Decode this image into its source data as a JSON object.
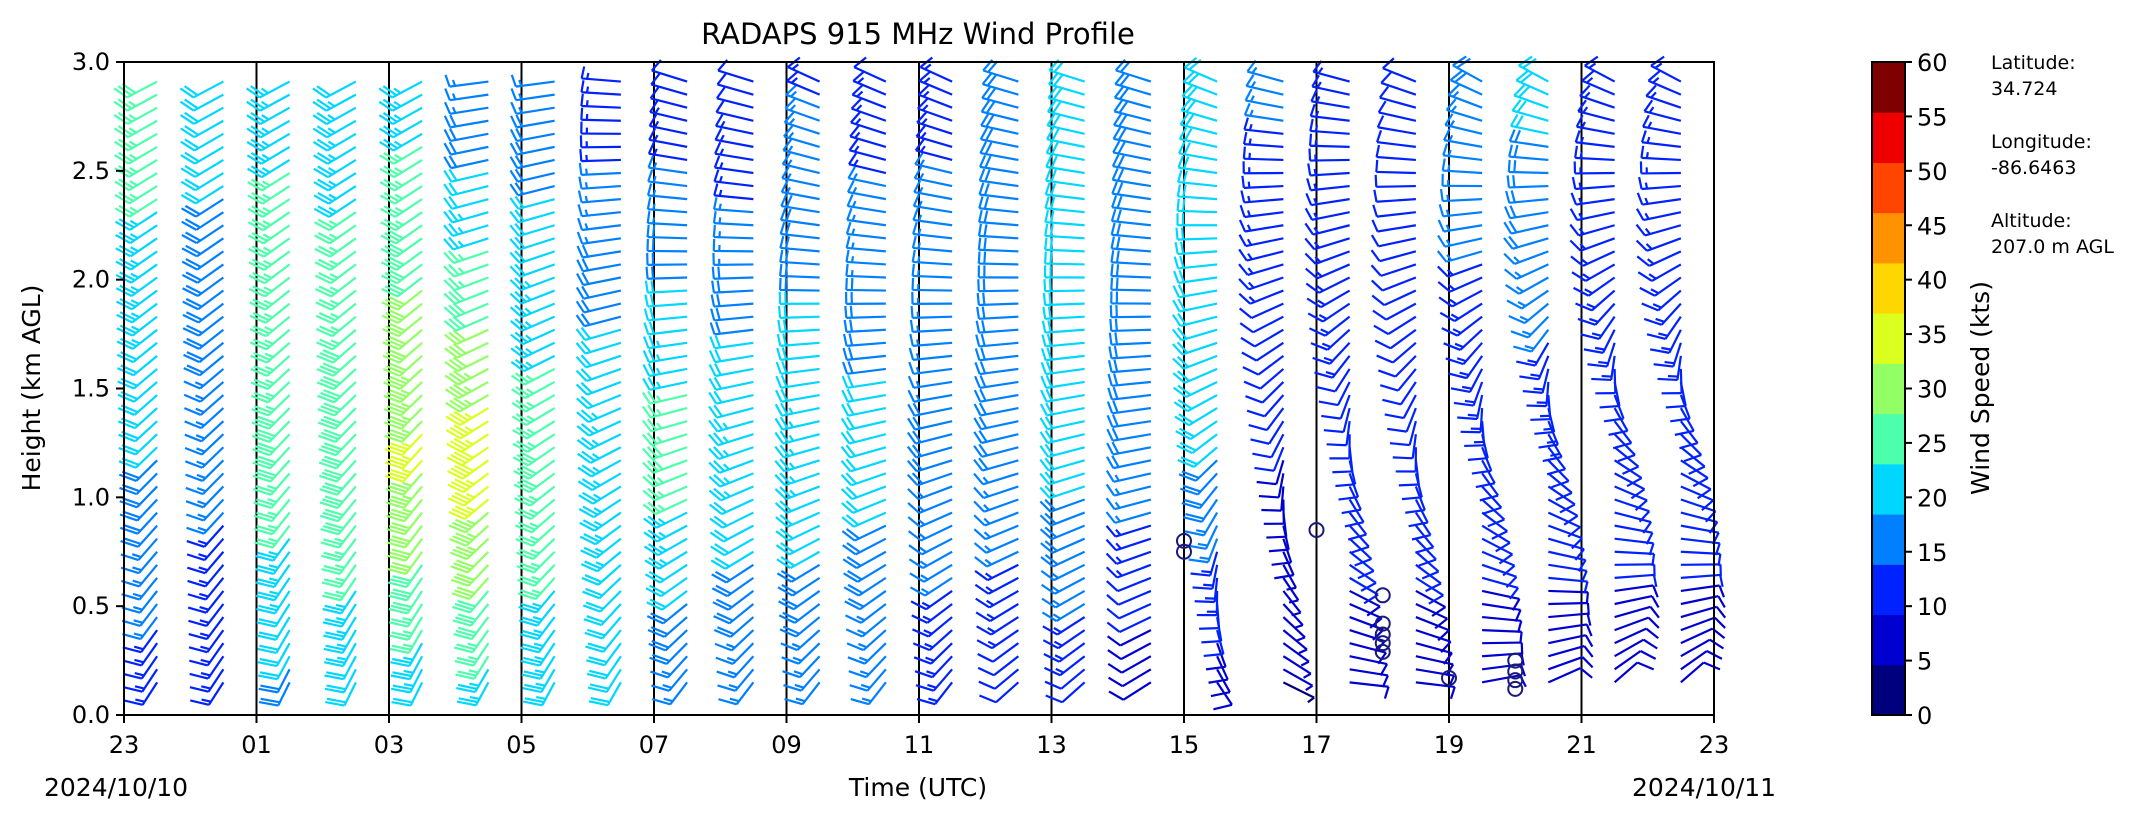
{
  "chart_data": {
    "type": "wind-barb",
    "title": "RADAPS 915 MHz Wind Profile",
    "xlabel": "Time (UTC)",
    "ylabel": "Height (km AGL)",
    "ylim": [
      0,
      3.0
    ],
    "xlim": [
      0,
      24
    ],
    "y_ticks": [
      "0.0",
      "0.5",
      "1.0",
      "1.5",
      "2.0",
      "2.5",
      "3.0"
    ],
    "x_ticks": [
      "23",
      "01",
      "03",
      "05",
      "07",
      "09",
      "11",
      "13",
      "15",
      "17",
      "19",
      "21",
      "23"
    ],
    "start_date": "2024/10/10",
    "end_date": "2024/10/11",
    "vertical_separators": true,
    "colorbar": {
      "label": "Wind Speed (kts)",
      "ticks": [
        "0",
        "5",
        "10",
        "15",
        "20",
        "25",
        "30",
        "35",
        "40",
        "45",
        "50",
        "55",
        "60"
      ],
      "colors": [
        "#00007f",
        "#0000d0",
        "#0022ff",
        "#0080ff",
        "#00d7ff",
        "#4cffaa",
        "#92ff64",
        "#dbff1e",
        "#ffd700",
        "#ff9200",
        "#ff4500",
        "#ee0000",
        "#7f0000"
      ]
    },
    "site": {
      "lat_label": "Latitude:",
      "lat": "34.724",
      "lon_label": "Longitude:",
      "lon": "-86.6463",
      "alt_label": "Altitude:",
      "alt": "207.0 m AGL"
    },
    "profile_times_hours": [
      0,
      1,
      2,
      3,
      4,
      5,
      6,
      7,
      8,
      9,
      10,
      11,
      12,
      13,
      14,
      15,
      16,
      17,
      18,
      19,
      20,
      21,
      22,
      23
    ],
    "profiles_by_hour": [
      {
        "t": 0,
        "speed_low": 12,
        "speed_mid": 20,
        "speed_high": 28,
        "dir_low": 200,
        "dir_high": 230
      },
      {
        "t": 1,
        "speed_low": 12,
        "speed_mid": 16,
        "speed_high": 22,
        "dir_low": 200,
        "dir_high": 230
      },
      {
        "t": 2,
        "speed_low": 18,
        "speed_mid": 28,
        "speed_high": 24,
        "dir_low": 195,
        "dir_high": 230
      },
      {
        "t": 3,
        "speed_low": 20,
        "speed_mid": 30,
        "speed_high": 22,
        "dir_low": 195,
        "dir_high": 230
      },
      {
        "t": 4,
        "speed_low": 20,
        "speed_mid": 36,
        "speed_high": 22,
        "dir_low": 195,
        "dir_high": 230
      },
      {
        "t": 5,
        "speed_low": 22,
        "speed_mid": 38,
        "speed_high": 14,
        "dir_low": 195,
        "dir_high": 260
      },
      {
        "t": 6,
        "speed_low": 22,
        "speed_mid": 28,
        "speed_high": 16,
        "dir_low": 195,
        "dir_high": 260
      },
      {
        "t": 7,
        "speed_low": 20,
        "speed_mid": 24,
        "speed_high": 12,
        "dir_low": 195,
        "dir_high": 280
      },
      {
        "t": 8,
        "speed_low": 14,
        "speed_mid": 28,
        "speed_high": 10,
        "dir_low": 200,
        "dir_high": 300
      },
      {
        "t": 9,
        "speed_low": 14,
        "speed_mid": 24,
        "speed_high": 10,
        "dir_low": 200,
        "dir_high": 300
      },
      {
        "t": 10,
        "speed_low": 14,
        "speed_mid": 24,
        "speed_high": 14,
        "dir_low": 200,
        "dir_high": 310
      },
      {
        "t": 11,
        "speed_low": 14,
        "speed_mid": 22,
        "speed_high": 12,
        "dir_low": 200,
        "dir_high": 310
      },
      {
        "t": 12,
        "speed_low": 12,
        "speed_mid": 18,
        "speed_high": 14,
        "dir_low": 200,
        "dir_high": 310
      },
      {
        "t": 13,
        "speed_low": 10,
        "speed_mid": 18,
        "speed_high": 18,
        "dir_low": 210,
        "dir_high": 300
      },
      {
        "t": 14,
        "speed_low": 10,
        "speed_mid": 22,
        "speed_high": 22,
        "dir_low": 210,
        "dir_high": 300
      },
      {
        "t": 15,
        "speed_low": 6,
        "speed_mid": 18,
        "speed_high": 18,
        "dir_low": 220,
        "dir_high": 300
      },
      {
        "t": 16,
        "speed_low": 6,
        "speed_mid": 20,
        "speed_high": 20,
        "dir_low": 150,
        "dir_high": 310
      },
      {
        "t": 17,
        "speed_low": 4,
        "speed_mid": 10,
        "speed_high": 16,
        "dir_low": 120,
        "dir_high": 300
      },
      {
        "t": 18,
        "speed_low": 8,
        "speed_mid": 12,
        "speed_high": 14,
        "dir_low": 90,
        "dir_high": 300
      },
      {
        "t": 19,
        "speed_low": 8,
        "speed_mid": 12,
        "speed_high": 12,
        "dir_low": 90,
        "dir_high": 310
      },
      {
        "t": 20,
        "speed_low": 8,
        "speed_mid": 12,
        "speed_high": 18,
        "dir_low": 60,
        "dir_high": 320
      },
      {
        "t": 21,
        "speed_low": 8,
        "speed_mid": 12,
        "speed_high": 22,
        "dir_low": 40,
        "dir_high": 320
      },
      {
        "t": 22,
        "speed_low": 8,
        "speed_mid": 12,
        "speed_high": 14,
        "dir_low": 20,
        "dir_high": 320
      },
      {
        "t": 23,
        "speed_low": 8,
        "speed_mid": 12,
        "speed_high": 14,
        "dir_low": 20,
        "dir_high": 320
      }
    ],
    "calm_markers": [
      {
        "t": 16,
        "h": 0.75
      },
      {
        "t": 16,
        "h": 0.8
      },
      {
        "t": 18,
        "h": 0.85
      },
      {
        "t": 19,
        "h": 0.55
      },
      {
        "t": 19,
        "h": 0.42
      },
      {
        "t": 19,
        "h": 0.37
      },
      {
        "t": 19,
        "h": 0.33
      },
      {
        "t": 19,
        "h": 0.29
      },
      {
        "t": 20,
        "h": 0.17
      },
      {
        "t": 21,
        "h": 0.25
      },
      {
        "t": 21,
        "h": 0.2
      },
      {
        "t": 21,
        "h": 0.16
      },
      {
        "t": 21,
        "h": 0.12
      }
    ]
  }
}
